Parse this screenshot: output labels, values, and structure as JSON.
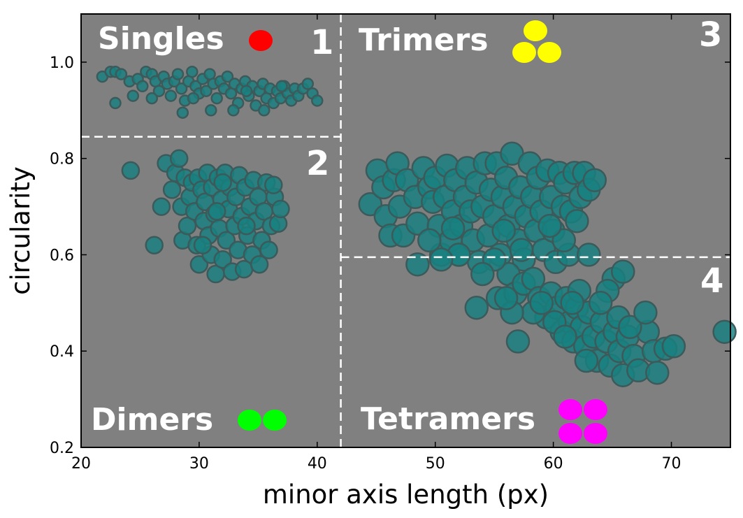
{
  "chart_data": {
    "type": "scatter",
    "xlabel": "minor axis length (px)",
    "ylabel": "circularity",
    "xlim": [
      20,
      75
    ],
    "ylim": [
      0.2,
      1.1
    ],
    "xticks": [
      20,
      30,
      40,
      50,
      60,
      70
    ],
    "xtick_labels": [
      "20",
      "30",
      "40",
      "50",
      "60",
      "70"
    ],
    "yticks": [
      0.2,
      0.4,
      0.6,
      0.8,
      1.0
    ],
    "ytick_labels": [
      "0.2",
      "0.4",
      "0.6",
      "0.8",
      "1.0"
    ],
    "grid": false,
    "colors": {
      "plot_background": "#808080",
      "point_fill": "#178080",
      "point_edge": "#3c5a5a",
      "divider": "#ffffff",
      "singles_marker": "#ff0000",
      "dimers_marker": "#00ff00",
      "trimers_marker": "#ffff00",
      "tetramers_marker": "#ff00ff"
    },
    "dividers": {
      "vertical_x": 42.0,
      "horizontal_left_y": 0.845,
      "horizontal_right_y": 0.595
    },
    "regions": [
      {
        "number": "1",
        "name": "Singles",
        "marker_icon": "single-red-circle-icon"
      },
      {
        "number": "2",
        "name": "Dimers",
        "marker_icon": "two-green-circles-icon"
      },
      {
        "number": "3",
        "name": "Trimers",
        "marker_icon": "three-yellow-circles-icon"
      },
      {
        "number": "4",
        "name": "Tetramers",
        "marker_icon": "four-magenta-circles-icon"
      }
    ],
    "series": [
      {
        "group": "singles",
        "points": [
          [
            21.8,
            0.97
          ],
          [
            22.5,
            0.98
          ],
          [
            22.9,
            0.98
          ],
          [
            23.4,
            0.975
          ],
          [
            24.1,
            0.96
          ],
          [
            24.4,
            0.93
          ],
          [
            22.9,
            0.915
          ],
          [
            24.8,
            0.965
          ],
          [
            25.2,
            0.95
          ],
          [
            25.5,
            0.98
          ],
          [
            26.0,
            0.975
          ],
          [
            26.3,
            0.96
          ],
          [
            26.6,
            0.94
          ],
          [
            27.0,
            0.97
          ],
          [
            27.3,
            0.955
          ],
          [
            27.6,
            0.93
          ],
          [
            27.9,
            0.96
          ],
          [
            28.2,
            0.975
          ],
          [
            28.5,
            0.945
          ],
          [
            28.8,
            0.92
          ],
          [
            29.1,
            0.96
          ],
          [
            29.4,
            0.98
          ],
          [
            29.7,
            0.95
          ],
          [
            30.0,
            0.935
          ],
          [
            30.3,
            0.965
          ],
          [
            30.6,
            0.94
          ],
          [
            30.9,
            0.975
          ],
          [
            31.2,
            0.955
          ],
          [
            31.5,
            0.925
          ],
          [
            31.8,
            0.96
          ],
          [
            32.1,
            0.945
          ],
          [
            32.4,
            0.97
          ],
          [
            32.7,
            0.935
          ],
          [
            33.0,
            0.955
          ],
          [
            33.3,
            0.915
          ],
          [
            33.6,
            0.945
          ],
          [
            33.9,
            0.96
          ],
          [
            34.2,
            0.93
          ],
          [
            34.5,
            0.95
          ],
          [
            34.8,
            0.91
          ],
          [
            35.1,
            0.94
          ],
          [
            35.4,
            0.955
          ],
          [
            35.7,
            0.925
          ],
          [
            36.0,
            0.945
          ],
          [
            36.3,
            0.915
          ],
          [
            36.6,
            0.94
          ],
          [
            36.9,
            0.925
          ],
          [
            37.2,
            0.95
          ],
          [
            37.5,
            0.935
          ],
          [
            37.8,
            0.92
          ],
          [
            38.1,
            0.945
          ],
          [
            38.4,
            0.93
          ],
          [
            38.8,
            0.945
          ],
          [
            39.2,
            0.955
          ],
          [
            39.6,
            0.935
          ],
          [
            40.0,
            0.92
          ],
          [
            28.6,
            0.895
          ],
          [
            31.0,
            0.9
          ],
          [
            32.9,
            0.9
          ],
          [
            35.5,
            0.9
          ],
          [
            26.0,
            0.925
          ],
          [
            29.5,
            0.925
          ],
          [
            34.0,
            0.94
          ],
          [
            37.0,
            0.95
          ]
        ]
      },
      {
        "group": "dimers",
        "points": [
          [
            24.2,
            0.775
          ],
          [
            26.2,
            0.62
          ],
          [
            26.8,
            0.7
          ],
          [
            27.2,
            0.79
          ],
          [
            27.7,
            0.735
          ],
          [
            28.0,
            0.77
          ],
          [
            28.3,
            0.8
          ],
          [
            28.5,
            0.7
          ],
          [
            28.6,
            0.63
          ],
          [
            28.8,
            0.76
          ],
          [
            29.0,
            0.66
          ],
          [
            29.2,
            0.72
          ],
          [
            29.4,
            0.75
          ],
          [
            29.6,
            0.69
          ],
          [
            29.8,
            0.62
          ],
          [
            29.9,
            0.76
          ],
          [
            30.0,
            0.58
          ],
          [
            30.2,
            0.735
          ],
          [
            30.4,
            0.67
          ],
          [
            30.5,
            0.71
          ],
          [
            30.7,
            0.77
          ],
          [
            30.8,
            0.64
          ],
          [
            31.0,
            0.6
          ],
          [
            31.1,
            0.74
          ],
          [
            31.3,
            0.685
          ],
          [
            31.4,
            0.56
          ],
          [
            31.6,
            0.76
          ],
          [
            31.7,
            0.655
          ],
          [
            31.9,
            0.715
          ],
          [
            32.0,
            0.59
          ],
          [
            32.2,
            0.77
          ],
          [
            32.3,
            0.63
          ],
          [
            32.5,
            0.695
          ],
          [
            32.6,
            0.74
          ],
          [
            32.8,
            0.565
          ],
          [
            33.0,
            0.66
          ],
          [
            33.1,
            0.72
          ],
          [
            33.3,
            0.61
          ],
          [
            33.4,
            0.765
          ],
          [
            33.6,
            0.68
          ],
          [
            33.8,
            0.57
          ],
          [
            33.9,
            0.74
          ],
          [
            34.1,
            0.64
          ],
          [
            34.3,
            0.7
          ],
          [
            34.5,
            0.6
          ],
          [
            34.6,
            0.755
          ],
          [
            34.8,
            0.67
          ],
          [
            35.0,
            0.72
          ],
          [
            35.1,
            0.58
          ],
          [
            35.3,
            0.63
          ],
          [
            35.5,
            0.69
          ],
          [
            35.7,
            0.75
          ],
          [
            35.9,
            0.61
          ],
          [
            36.1,
            0.66
          ],
          [
            36.4,
            0.72
          ],
          [
            36.7,
            0.665
          ],
          [
            36.9,
            0.695
          ],
          [
            36.3,
            0.745
          ],
          [
            32.0,
            0.75
          ],
          [
            30.3,
            0.62
          ],
          [
            34.0,
            0.66
          ],
          [
            31.5,
            0.69
          ]
        ]
      },
      {
        "group": "multimers",
        "points": [
          [
            44.5,
            0.705
          ],
          [
            45.1,
            0.775
          ],
          [
            45.6,
            0.74
          ],
          [
            45.8,
            0.68
          ],
          [
            46.2,
            0.64
          ],
          [
            46.5,
            0.755
          ],
          [
            46.8,
            0.79
          ],
          [
            47.0,
            0.7
          ],
          [
            47.3,
            0.64
          ],
          [
            47.6,
            0.755
          ],
          [
            48.3,
            0.72
          ],
          [
            48.5,
            0.665
          ],
          [
            49.0,
            0.78
          ],
          [
            49.5,
            0.74
          ],
          [
            49.8,
            0.71
          ],
          [
            50.0,
            0.76
          ],
          [
            50.3,
            0.66
          ],
          [
            50.5,
            0.6
          ],
          [
            50.8,
            0.72
          ],
          [
            51.0,
            0.785
          ],
          [
            51.3,
            0.63
          ],
          [
            51.5,
            0.69
          ],
          [
            51.7,
            0.755
          ],
          [
            52.0,
            0.6
          ],
          [
            52.2,
            0.66
          ],
          [
            52.5,
            0.72
          ],
          [
            52.7,
            0.78
          ],
          [
            53.0,
            0.69
          ],
          [
            53.2,
            0.63
          ],
          [
            53.5,
            0.75
          ],
          [
            53.7,
            0.585
          ],
          [
            54.0,
            0.7
          ],
          [
            54.2,
            0.79
          ],
          [
            54.5,
            0.64
          ],
          [
            54.7,
            0.735
          ],
          [
            55.0,
            0.68
          ],
          [
            55.2,
            0.79
          ],
          [
            55.5,
            0.6
          ],
          [
            55.7,
            0.72
          ],
          [
            56.0,
            0.76
          ],
          [
            56.2,
            0.66
          ],
          [
            56.5,
            0.81
          ],
          [
            56.7,
            0.7
          ],
          [
            57.0,
            0.63
          ],
          [
            57.2,
            0.74
          ],
          [
            57.5,
            0.59
          ],
          [
            57.7,
            0.68
          ],
          [
            58.0,
            0.79
          ],
          [
            58.2,
            0.72
          ],
          [
            58.5,
            0.65
          ],
          [
            58.7,
            0.76
          ],
          [
            59.0,
            0.69
          ],
          [
            59.2,
            0.61
          ],
          [
            59.5,
            0.775
          ],
          [
            59.8,
            0.72
          ],
          [
            60.0,
            0.65
          ],
          [
            60.2,
            0.585
          ],
          [
            60.5,
            0.77
          ],
          [
            60.8,
            0.7
          ],
          [
            61.0,
            0.75
          ],
          [
            61.3,
            0.6
          ],
          [
            61.5,
            0.69
          ],
          [
            61.8,
            0.77
          ],
          [
            62.0,
            0.67
          ],
          [
            62.3,
            0.72
          ],
          [
            62.6,
            0.77
          ],
          [
            63.0,
            0.735
          ],
          [
            63.5,
            0.755
          ],
          [
            56.2,
            0.56
          ],
          [
            55.3,
            0.51
          ],
          [
            56.8,
            0.52
          ],
          [
            57.5,
            0.54
          ],
          [
            58.3,
            0.55
          ],
          [
            58.8,
            0.51
          ],
          [
            59.4,
            0.47
          ],
          [
            59.8,
            0.52
          ],
          [
            60.3,
            0.49
          ],
          [
            60.7,
            0.44
          ],
          [
            61.1,
            0.51
          ],
          [
            61.4,
            0.46
          ],
          [
            61.7,
            0.42
          ],
          [
            62.0,
            0.49
          ],
          [
            62.4,
            0.45
          ],
          [
            62.7,
            0.41
          ],
          [
            63.0,
            0.48
          ],
          [
            63.4,
            0.43
          ],
          [
            63.7,
            0.38
          ],
          [
            64.1,
            0.46
          ],
          [
            64.5,
            0.42
          ],
          [
            64.8,
            0.37
          ],
          [
            65.2,
            0.44
          ],
          [
            65.6,
            0.4
          ],
          [
            65.9,
            0.35
          ],
          [
            66.3,
            0.43
          ],
          [
            66.8,
            0.39
          ],
          [
            67.2,
            0.36
          ],
          [
            68.0,
            0.44
          ],
          [
            68.5,
            0.4
          ],
          [
            68.8,
            0.355
          ],
          [
            69.5,
            0.405
          ],
          [
            70.2,
            0.41
          ],
          [
            74.5,
            0.44
          ],
          [
            65.1,
            0.55
          ],
          [
            65.9,
            0.565
          ],
          [
            64.6,
            0.525
          ],
          [
            62.2,
            0.525
          ],
          [
            61.6,
            0.5
          ],
          [
            60.1,
            0.46
          ],
          [
            58.3,
            0.48
          ],
          [
            57.0,
            0.42
          ],
          [
            56.5,
            0.48
          ],
          [
            55.0,
            0.59
          ],
          [
            53.5,
            0.49
          ],
          [
            52.0,
            0.6
          ],
          [
            50.5,
            0.59
          ],
          [
            49.5,
            0.63
          ],
          [
            48.5,
            0.58
          ],
          [
            51.5,
            0.655
          ],
          [
            54.0,
            0.56
          ],
          [
            63.0,
            0.6
          ],
          [
            64.0,
            0.5
          ],
          [
            65.5,
            0.47
          ],
          [
            66.5,
            0.45
          ],
          [
            67.8,
            0.48
          ],
          [
            61.0,
            0.43
          ],
          [
            62.8,
            0.38
          ],
          [
            59.0,
            0.5
          ],
          [
            57.3,
            0.61
          ],
          [
            56.0,
            0.51
          ],
          [
            60.9,
            0.63
          ],
          [
            59.7,
            0.66
          ],
          [
            55.8,
            0.65
          ]
        ]
      }
    ]
  }
}
